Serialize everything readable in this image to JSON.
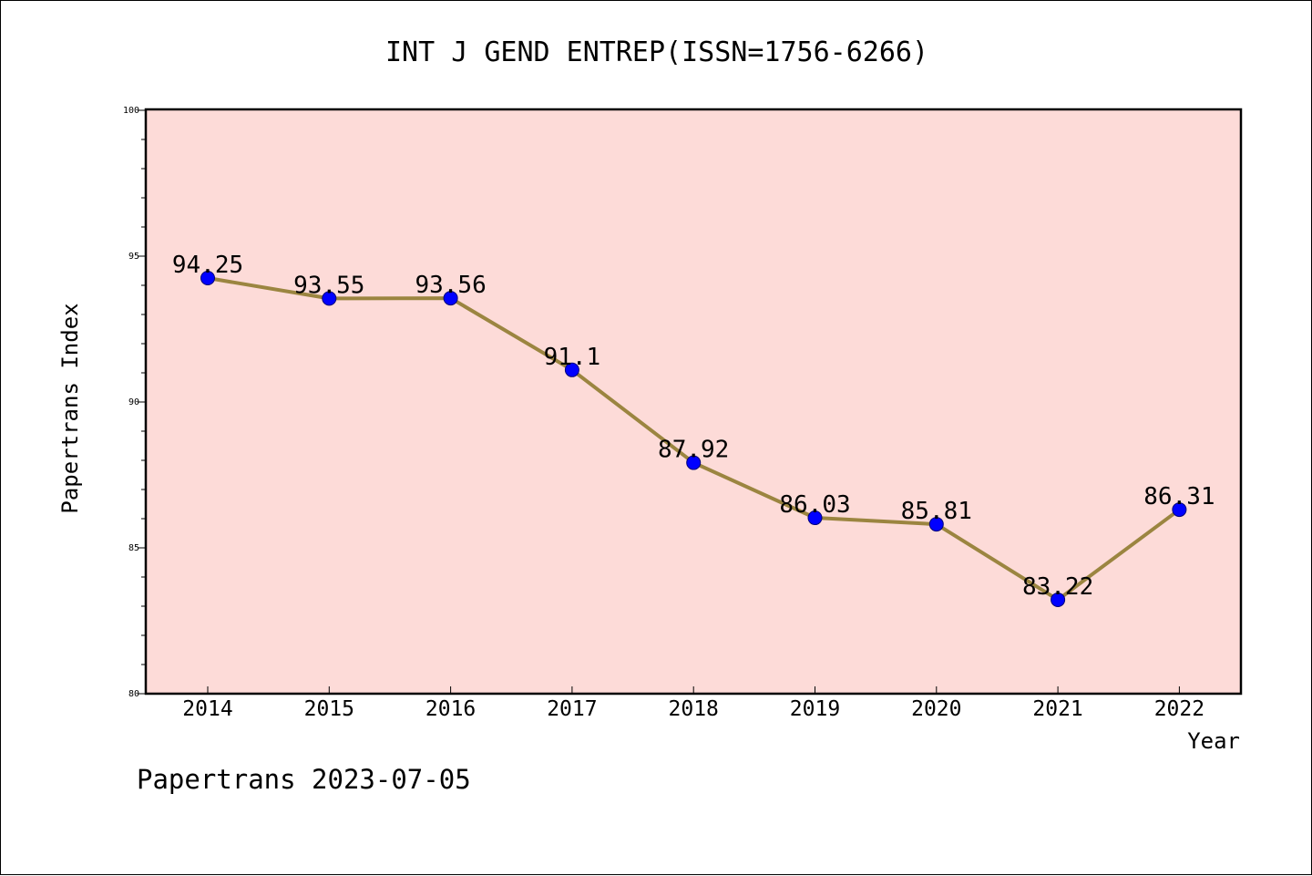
{
  "chart_data": {
    "type": "line",
    "title": "INT J GEND ENTREP(ISSN=1756-6266)",
    "xlabel": "Year",
    "ylabel": "Papertrans Index",
    "categories": [
      "2014",
      "2015",
      "2016",
      "2017",
      "2018",
      "2019",
      "2020",
      "2021",
      "2022"
    ],
    "series": [
      {
        "values": [
          94.25,
          93.55,
          93.56,
          91.1,
          87.92,
          86.03,
          85.81,
          83.22,
          86.31
        ],
        "labels": [
          "94.25",
          "93.55",
          "93.56",
          "91.1",
          "87.92",
          "86.03",
          "85.81",
          "83.22",
          "86.31"
        ]
      }
    ],
    "ylim": [
      80,
      100
    ],
    "yticks": [
      "80",
      "85",
      "90",
      "95",
      "100"
    ],
    "grid": false,
    "colors": {
      "plot_background": "#fddbd8",
      "line": "#9b8540",
      "marker": "#0000ff"
    },
    "footer": "Papertrans 2023-07-05"
  }
}
